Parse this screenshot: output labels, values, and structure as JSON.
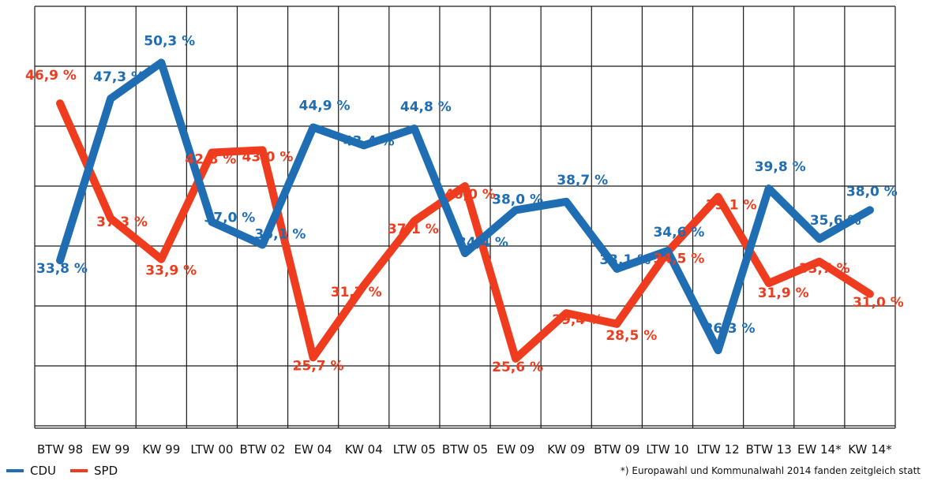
{
  "chart_data": {
    "type": "line",
    "categories": [
      "BTW 98",
      "EW 99",
      "KW 99",
      "LTW 00",
      "BTW 02",
      "EW 04",
      "KW 04",
      "LTW 05",
      "BTW 05",
      "EW 09",
      "KW 09",
      "BTW 09",
      "LTW 10",
      "LTW 12",
      "BTW 13",
      "EW 14*",
      "KW 14*"
    ],
    "series": [
      {
        "name": "CDU",
        "color": "#1f6db3",
        "values": [
          33.8,
          47.3,
          50.3,
          37.0,
          35.1,
          44.9,
          43.4,
          44.8,
          34.4,
          38.0,
          38.7,
          33.1,
          34.6,
          26.3,
          39.8,
          35.6,
          38.0
        ],
        "labels": [
          "33,8 %",
          "47,3 %",
          "50,3 %",
          "37,0 %",
          "35,1 %",
          "44,9 %",
          "43,4 %",
          "44,8 %",
          "34,4 %",
          "38,0 %",
          "38,7 %",
          "33,1 %",
          "34,6 %",
          "26,3 %",
          "39,8 %",
          "35,6 %",
          "38,0 %"
        ]
      },
      {
        "name": "SPD",
        "color": "#f03c1e",
        "values": [
          46.9,
          37.3,
          33.9,
          42.8,
          43.0,
          25.7,
          31.7,
          37.1,
          40.0,
          25.6,
          29.4,
          28.5,
          34.5,
          39.1,
          31.9,
          33.7,
          31.0
        ],
        "labels": [
          "46,9 %",
          "37,3 %",
          "33,9 %",
          "42,8 %",
          "43,0 %",
          "25,7 %",
          "31,7 %",
          "37,1 %",
          "40,0 %",
          "25,6 %",
          "29,4 %",
          "28,5 %",
          "34,5 %",
          "39,1 %",
          "31,9 %",
          "33,7 %",
          "31,0 %"
        ]
      }
    ],
    "ylim": [
      20,
      55
    ],
    "grid": true,
    "legend_position": "bottom-left"
  },
  "footnote": "*) Europawahl und Kommunalwahl 2014 fanden zeitgleich statt"
}
